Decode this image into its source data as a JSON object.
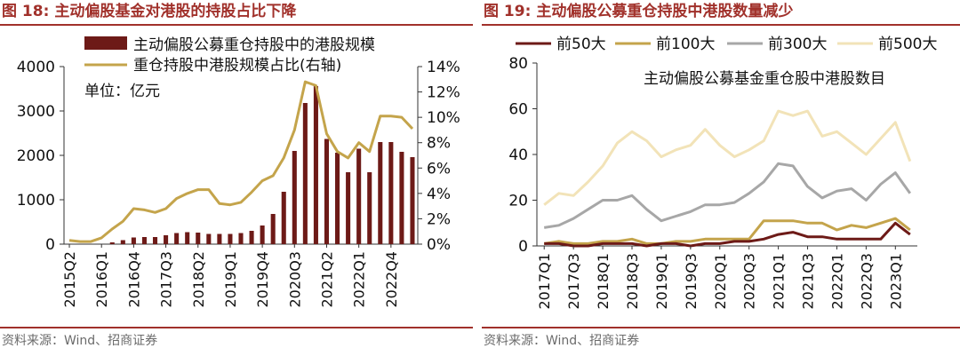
{
  "left_panel": {
    "figure_number": "图 18:",
    "title": "主动偏股基金对港股的持股占比下降",
    "source": "资料来源：Wind、招商证券",
    "unit_note": "单位：亿元"
  },
  "right_panel": {
    "figure_number": "图 19:",
    "title": "主动偏股公募重仓持股中港股数量减少",
    "source": "资料来源：Wind、招商证券",
    "inner_title": "主动偏股公募基金重仓股中港股数目"
  },
  "colors": {
    "title_red": "#a1312b",
    "bar_dark_red": "#6d1a17",
    "line_gold": "#c4a44b",
    "series_top50": "#6d1a17",
    "series_top100": "#c4a44b",
    "series_top300": "#a7a7a7",
    "series_top500": "#f2e3b8"
  },
  "chart_data": [
    {
      "type": "bar+line",
      "title": "主动偏股基金对港股的持股占比下降",
      "categories": [
        "2015Q2",
        "2015Q3",
        "2015Q4",
        "2016Q1",
        "2016Q2",
        "2016Q3",
        "2016Q4",
        "2017Q1",
        "2017Q2",
        "2017Q3",
        "2017Q4",
        "2018Q1",
        "2018Q2",
        "2018Q3",
        "2018Q4",
        "2019Q1",
        "2019Q2",
        "2019Q3",
        "2019Q4",
        "2020Q1",
        "2020Q2",
        "2020Q3",
        "2020Q4",
        "2021Q1",
        "2021Q2",
        "2021Q3",
        "2021Q4",
        "2022Q1",
        "2022Q2",
        "2022Q3",
        "2022Q4",
        "2023Q1",
        "2023Q2"
      ],
      "x_tick_labels": [
        "2015Q2",
        "2016Q1",
        "2016Q4",
        "2017Q3",
        "2018Q2",
        "2019Q1",
        "2019Q4",
        "2020Q3",
        "2021Q2",
        "2022Q1",
        "2022Q4"
      ],
      "y_left": {
        "ticks": [
          "0",
          "1000",
          "2000",
          "3000",
          "4000"
        ],
        "lim": [
          0,
          4000
        ]
      },
      "y_right": {
        "ticks": [
          "0%",
          "2%",
          "4%",
          "6%",
          "8%",
          "10%",
          "12%",
          "14%"
        ],
        "lim": [
          0,
          14
        ]
      },
      "legend_position": "top-left",
      "series": [
        {
          "name": "主动偏股公募重仓持股中的港股规模",
          "type": "bar",
          "axis": "left",
          "values": [
            0,
            0,
            0,
            0,
            40,
            90,
            150,
            160,
            160,
            200,
            250,
            270,
            260,
            230,
            230,
            230,
            250,
            300,
            420,
            680,
            1180,
            2100,
            3180,
            3560,
            2370,
            2060,
            1620,
            2150,
            1620,
            2300,
            2300,
            2080,
            1960
          ]
        },
        {
          "name": "重仓持股中港股规模占比(右轴)",
          "type": "line",
          "axis": "right",
          "values": [
            0.3,
            0.2,
            0.2,
            0.5,
            1.2,
            1.8,
            2.8,
            2.7,
            2.5,
            2.8,
            3.6,
            4.0,
            4.3,
            4.3,
            3.2,
            3.1,
            3.3,
            4.1,
            5.0,
            5.4,
            6.8,
            9.0,
            12.8,
            12.5,
            8.7,
            7.3,
            6.8,
            8.0,
            7.3,
            10.1,
            10.1,
            10.0,
            9.1
          ]
        }
      ]
    },
    {
      "type": "line",
      "title": "主动偏股公募基金重仓股中港股数目",
      "x": [
        "2017Q1",
        "2017Q2",
        "2017Q3",
        "2017Q4",
        "2018Q1",
        "2018Q2",
        "2018Q3",
        "2018Q4",
        "2019Q1",
        "2019Q2",
        "2019Q3",
        "2019Q4",
        "2020Q1",
        "2020Q2",
        "2020Q3",
        "2020Q4",
        "2021Q1",
        "2021Q2",
        "2021Q3",
        "2021Q4",
        "2022Q1",
        "2022Q2",
        "2022Q3",
        "2022Q4",
        "2023Q1",
        "2023Q2"
      ],
      "x_tick_labels": [
        "2017Q1",
        "2017Q3",
        "2018Q1",
        "2018Q3",
        "2019Q1",
        "2019Q3",
        "2020Q1",
        "2020Q3",
        "2021Q1",
        "2021Q3",
        "2022Q1",
        "2022Q3",
        "2023Q1"
      ],
      "y": {
        "ticks": [
          "0",
          "20",
          "40",
          "60",
          "80"
        ],
        "lim": [
          0,
          80
        ]
      },
      "legend_position": "top",
      "series": [
        {
          "name": "前50大",
          "values": [
            1,
            1,
            0,
            0,
            1,
            1,
            1,
            0,
            1,
            1,
            0,
            1,
            1,
            2,
            2,
            3,
            5,
            6,
            4,
            4,
            3,
            3,
            3,
            3,
            10,
            5
          ]
        },
        {
          "name": "前100大",
          "values": [
            1,
            2,
            1,
            1,
            2,
            2,
            3,
            1,
            1,
            2,
            2,
            3,
            3,
            3,
            3,
            11,
            11,
            11,
            10,
            10,
            7,
            9,
            8,
            10,
            12,
            7
          ]
        },
        {
          "name": "前300大",
          "values": [
            8,
            9,
            12,
            16,
            20,
            20,
            22,
            16,
            11,
            13,
            15,
            18,
            18,
            19,
            23,
            28,
            36,
            35,
            26,
            21,
            24,
            25,
            20,
            27,
            32,
            23
          ]
        },
        {
          "name": "前500大",
          "values": [
            18,
            23,
            22,
            28,
            35,
            45,
            50,
            46,
            39,
            42,
            44,
            51,
            44,
            39,
            42,
            46,
            59,
            57,
            59,
            48,
            50,
            45,
            40,
            47,
            54,
            37
          ]
        }
      ]
    }
  ]
}
